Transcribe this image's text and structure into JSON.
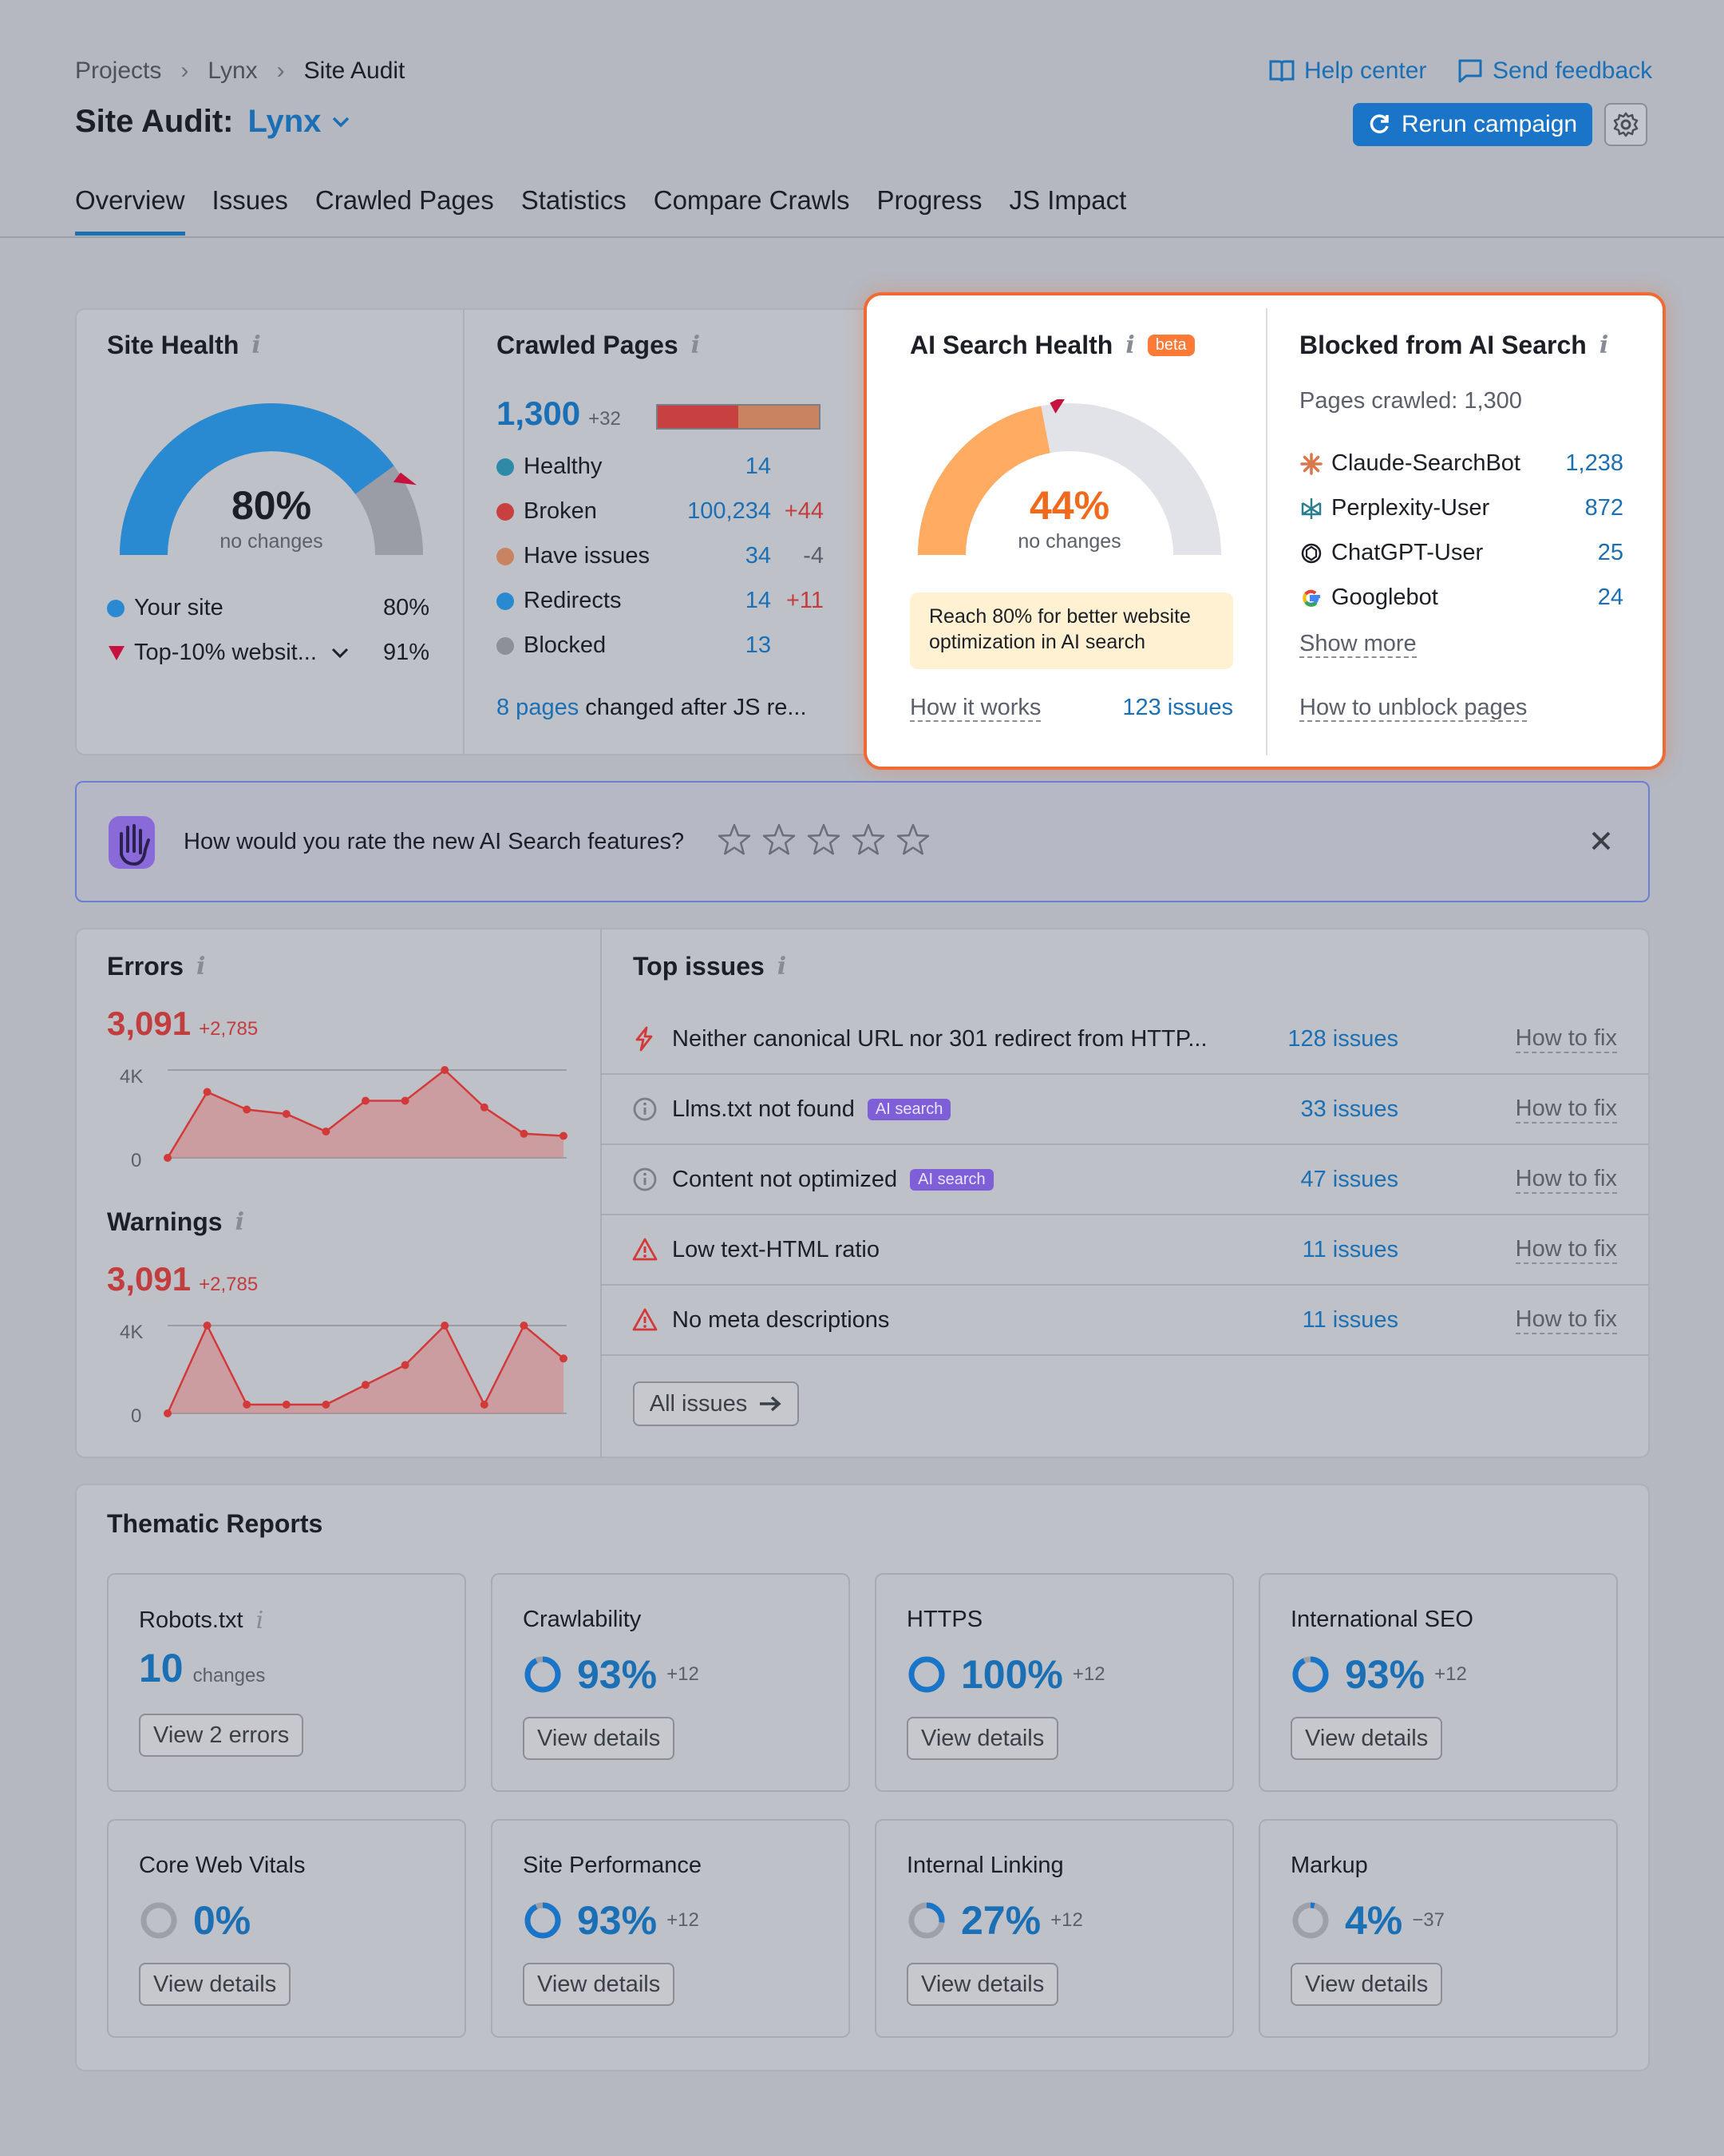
{
  "breadcrumbs": [
    "Projects",
    "Lynx",
    "Site Audit"
  ],
  "title": {
    "prefix": "Site Audit:",
    "project": "Lynx"
  },
  "header_links": {
    "help": "Help center",
    "feedback": "Send feedback"
  },
  "rerun_label": "Rerun campaign",
  "tabs": [
    "Overview",
    "Issues",
    "Crawled Pages",
    "Statistics",
    "Compare Crawls",
    "Progress",
    "JS Impact"
  ],
  "site_health": {
    "title": "Site Health",
    "value": "80%",
    "sub": "no changes",
    "gauge_fraction": 0.8,
    "your_site_label": "Your site",
    "your_site_value": "80%",
    "top_label": "Top-10% websit...",
    "top_value": "91%",
    "color": "#2a8ad1"
  },
  "crawled_pages": {
    "title": "Crawled Pages",
    "total": "1,300",
    "delta": "+32",
    "rows": [
      {
        "label": "Healthy",
        "value": "14",
        "delta": "",
        "color": "#2e8aa8"
      },
      {
        "label": "Broken",
        "value": "100,234",
        "delta": "+44",
        "color": "#c94040"
      },
      {
        "label": "Have issues",
        "value": "34",
        "delta": "-4",
        "color": "#c98360"
      },
      {
        "label": "Redirects",
        "value": "14",
        "delta": "+11",
        "color": "#2a8ad1"
      },
      {
        "label": "Blocked",
        "value": "13",
        "delta": "",
        "color": "#8d9097"
      }
    ],
    "js_link": "8 pages",
    "js_text": "changed after JS re..."
  },
  "ai_health": {
    "title": "AI Search Health",
    "badge": "beta",
    "value": "44%",
    "sub": "no changes",
    "gauge_fraction": 0.44,
    "tip": "Reach 80% for better website optimization in AI search",
    "how_it_works": "How it works",
    "issues_link": "123 issues"
  },
  "blocked_ai": {
    "title": "Blocked from AI Search",
    "pages_crawled": "Pages crawled: 1,300",
    "bots": [
      {
        "name": "Claude-SearchBot",
        "value": "1,238",
        "icon": "claude-icon"
      },
      {
        "name": "Perplexity-User",
        "value": "872",
        "icon": "perplexity-icon"
      },
      {
        "name": "ChatGPT-User",
        "value": "25",
        "icon": "chatgpt-icon"
      },
      {
        "name": "Googlebot",
        "value": "24",
        "icon": "google-icon"
      }
    ],
    "show_more": "Show more",
    "how_unblock": "How to unblock pages"
  },
  "rating": {
    "question": "How would you rate the new AI Search features?",
    "stars": 5
  },
  "errors": {
    "title": "Errors",
    "value": "3,091",
    "delta": "+2,785",
    "y_ticks": [
      "4K",
      "0"
    ],
    "ymax": 4000,
    "values": [
      0,
      3000,
      2200,
      2000,
      1200,
      2600,
      2600,
      4000,
      2300,
      1100,
      1000
    ]
  },
  "warnings": {
    "title": "Warnings",
    "value": "3,091",
    "delta": "+2,785",
    "y_ticks": [
      "4K",
      "0"
    ],
    "ymax": 4000,
    "values": [
      0,
      4000,
      400,
      400,
      400,
      1300,
      2200,
      4000,
      400,
      4000,
      2500
    ]
  },
  "top_issues": {
    "title": "Top issues",
    "rows": [
      {
        "icon": "bolt-icon",
        "text": "Neither canonical URL nor 301 redirect from HTTP...",
        "tag": "",
        "count": "128 issues",
        "fix": "How to fix"
      },
      {
        "icon": "info-circle-icon",
        "text": "Llms.txt not found",
        "tag": "AI search",
        "count": "33 issues",
        "fix": "How to fix"
      },
      {
        "icon": "info-circle-icon",
        "text": "Content not optimized",
        "tag": "AI search",
        "count": "47 issues",
        "fix": "How to fix"
      },
      {
        "icon": "warning-icon",
        "text": "Low text-HTML ratio",
        "tag": "",
        "count": "11 issues",
        "fix": "How to fix"
      },
      {
        "icon": "warning-icon",
        "text": "No meta descriptions",
        "tag": "",
        "count": "11 issues",
        "fix": "How to fix"
      }
    ],
    "all_issues": "All issues"
  },
  "thematic": {
    "title": "Thematic Reports",
    "robots": {
      "title": "Robots.txt",
      "value": "10",
      "unit": "changes",
      "button": "View 2 errors"
    },
    "reports": [
      {
        "title": "Crawlability",
        "value": "93%",
        "delta": "+12",
        "fraction": 0.93,
        "button": "View details"
      },
      {
        "title": "HTTPS",
        "value": "100%",
        "delta": "+12",
        "fraction": 1.0,
        "button": "View details"
      },
      {
        "title": "International SEO",
        "value": "93%",
        "delta": "+12",
        "fraction": 0.93,
        "button": "View details"
      },
      {
        "title": "Core Web Vitals",
        "value": "0%",
        "delta": "",
        "fraction": 0.0,
        "button": "View details"
      },
      {
        "title": "Site Performance",
        "value": "93%",
        "delta": "+12",
        "fraction": 0.93,
        "button": "View details"
      },
      {
        "title": "Internal Linking",
        "value": "27%",
        "delta": "+12",
        "fraction": 0.27,
        "button": "View details"
      },
      {
        "title": "Markup",
        "value": "4%",
        "delta": "−37",
        "fraction": 0.04,
        "button": "View details"
      }
    ]
  }
}
